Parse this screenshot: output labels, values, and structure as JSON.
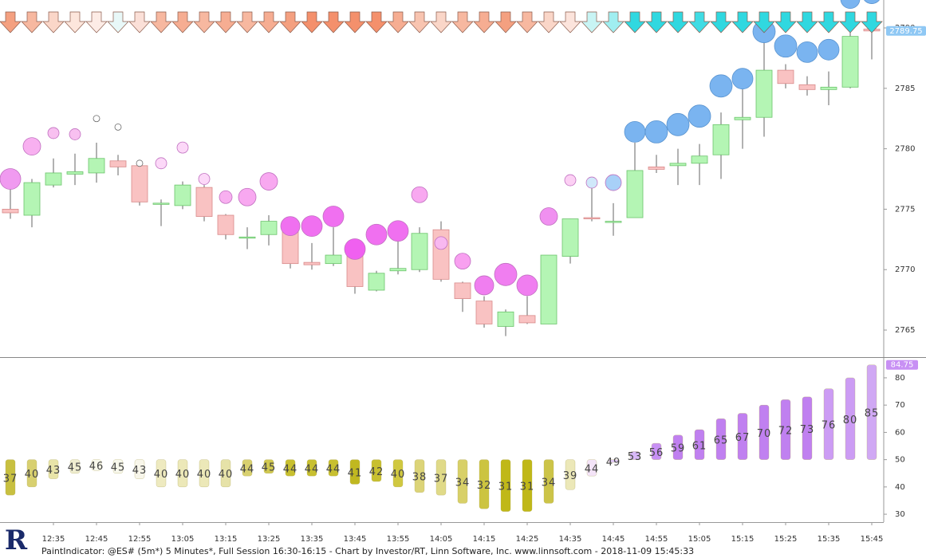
{
  "chart_data": [
    {
      "type": "candlestick",
      "categories": [
        null,
        null,
        "12:35",
        null,
        "12:45",
        null,
        "12:55",
        null,
        "13:05",
        null,
        "13:15",
        null,
        "13:25",
        null,
        "13:35",
        null,
        "13:45",
        null,
        "13:55",
        null,
        "14:05",
        null,
        "14:15",
        null,
        "14:25",
        null,
        "14:35",
        null,
        "14:45",
        null,
        "14:55",
        null,
        "15:05",
        null,
        "15:15",
        null,
        "15:25",
        null,
        "15:35",
        null,
        "15:45"
      ],
      "open": [
        2775,
        2774.5,
        2777,
        2777.9,
        2778,
        2779,
        2778.6,
        2775.5,
        2775.3,
        2776.8,
        2774.5,
        2772.7,
        2772.9,
        2773.3,
        2770.6,
        2770.5,
        2771.4,
        2768.3,
        2769.9,
        2770,
        2773.3,
        2768.9,
        2767.4,
        2765.3,
        2766.2,
        2765.5,
        2771.1,
        2774.3,
        2774,
        2774.3,
        2778.5,
        2778.6,
        2778.8,
        2779.5,
        2782.4,
        2782.6,
        2786.5,
        2785.3,
        2784.9,
        2785.1,
        2789.9
      ],
      "high": [
        2777,
        2777.5,
        2779.2,
        2779.6,
        2780.5,
        2779.5,
        2778.6,
        2775.8,
        2777.3,
        2777,
        2774.6,
        2773.5,
        2774.5,
        2773.5,
        2772.2,
        2773.5,
        2772.5,
        2769.9,
        2773,
        2773.5,
        2774,
        2769,
        2767.8,
        2766.7,
        2767.8,
        2771.2,
        2774.2,
        2777,
        2775.5,
        2780.5,
        2779.5,
        2780,
        2780.4,
        2783,
        2786,
        2788.8,
        2787,
        2786,
        2786.4,
        2790,
        2790.3
      ],
      "low": [
        2774.2,
        2773.5,
        2776.8,
        2777,
        2777.2,
        2777.8,
        2775.3,
        2773.6,
        2775,
        2774,
        2772.5,
        2771.7,
        2772,
        2770.1,
        2770,
        2770.3,
        2768,
        2768.2,
        2769.6,
        2769.8,
        2769,
        2766.5,
        2765.2,
        2764.5,
        2765.5,
        2765.5,
        2770.5,
        2774,
        2772.8,
        2774.3,
        2778,
        2777,
        2777,
        2777.5,
        2780,
        2781,
        2785,
        2784.4,
        2783.6,
        2785,
        2787.4
      ],
      "close": [
        2774.7,
        2777.2,
        2778,
        2778.1,
        2779.2,
        2778.5,
        2775.6,
        2775.5,
        2777,
        2774.4,
        2772.9,
        2772.7,
        2774,
        2770.5,
        2770.4,
        2771.2,
        2768.6,
        2769.7,
        2770.1,
        2773,
        2769.2,
        2767.6,
        2765.5,
        2766.5,
        2765.6,
        2771.2,
        2774.2,
        2774.2,
        2774,
        2778.2,
        2778.3,
        2778.8,
        2779.4,
        2782,
        2782.6,
        2786.5,
        2785.4,
        2784.9,
        2785.1,
        2789.3,
        2789.75
      ],
      "up_color": "#b4f5b4",
      "down_color": "#f9c2c2",
      "circles": {
        "values": [
          2777.5,
          2780.2,
          2781.3,
          2781.2,
          2782.5,
          2781.8,
          2778.8,
          2778.8,
          2780.1,
          2777.5,
          2776,
          2776,
          2777.3,
          2773.6,
          2773.6,
          2774.4,
          2771.7,
          2772.9,
          2773.2,
          2776.2,
          2772.2,
          2770.7,
          2768.7,
          2769.6,
          2768.7,
          2774.4,
          2777.4,
          2777.2,
          2777.2,
          2781.4,
          2781.4,
          2782,
          2782.7,
          2785.2,
          2785.8,
          2789.7,
          2788.5,
          2788,
          2788.2,
          2792.4,
          2792.8
        ],
        "sizes": [
          13,
          11,
          7,
          7,
          4,
          4,
          4,
          7,
          7,
          7,
          8,
          11,
          11,
          12,
          13,
          13,
          13,
          13,
          13,
          10,
          8,
          10,
          12,
          14,
          13,
          11,
          7,
          7,
          10,
          13,
          14,
          14,
          14,
          14,
          13,
          14,
          14,
          13,
          13,
          12,
          12
        ],
        "colors": [
          "#f09af0",
          "#f8b0f0",
          "#f8c0f0",
          "#f8c0f0",
          "#ffffff",
          "#ffffff",
          "#ffffff",
          "#fcd8f8",
          "#fcd8f8",
          "#fcd8f8",
          "#f8b0f0",
          "#f8a8f0",
          "#f8a8f0",
          "#f070f0",
          "#f070f0",
          "#f070f0",
          "#f060f0",
          "#f070f0",
          "#f070f0",
          "#f8a8f0",
          "#f8b8f0",
          "#f8a0f0",
          "#f07ef0",
          "#f07ef0",
          "#f07ef0",
          "#f090f0",
          "#fcd0f4",
          "#d0e8fa",
          "#a8d0f8",
          "#7ab4f0",
          "#7ab4f0",
          "#7ab4f0",
          "#7ab4f0",
          "#7ab4f0",
          "#7ab4f0",
          "#7ab4f0",
          "#7ab4f0",
          "#7ab4f0",
          "#7ab4f0",
          "#7ab4f0",
          "#7ab4f0"
        ]
      },
      "arrow_colors": [
        "#f4a080",
        "#f7b8a0",
        "#fad6c8",
        "#fde6dc",
        "#fdece6",
        "#e8f8f8",
        "#fbe0d8",
        "#f7b8a0",
        "#f6ad92",
        "#f7b8a0",
        "#f6ad92",
        "#f7b8a0",
        "#f6ad92",
        "#f4a080",
        "#f4906c",
        "#f4906c",
        "#f4906c",
        "#f4906c",
        "#f6ad92",
        "#f8c4b0",
        "#fad6c8",
        "#f7b8a0",
        "#f6ad92",
        "#f4a080",
        "#f7b8a0",
        "#fad6c8",
        "#fce4dc",
        "#c8f4f4",
        "#a0eef0",
        "#30d8e0",
        "#30d8e0",
        "#30d8e0",
        "#40dce4",
        "#30d8e0",
        "#30d8e0",
        "#30d8e0",
        "#30d8e0",
        "#30d8e0",
        "#30d8e0",
        "#30d8e0",
        "#30d8e0"
      ],
      "ylim": [
        2762.76,
        2792.31
      ],
      "yticks": [
        2765,
        2770,
        2775,
        2780,
        2785,
        2790
      ]
    },
    {
      "type": "bar",
      "values": [
        37,
        40,
        43,
        45,
        46,
        45,
        43,
        40,
        40,
        40,
        40,
        44,
        45,
        44,
        44,
        44,
        41,
        42,
        40,
        38,
        37,
        34,
        32,
        31,
        31,
        34,
        39,
        44,
        49,
        53,
        56,
        59,
        61,
        65,
        67,
        70,
        72,
        73,
        76,
        80,
        84.75
      ],
      "value_labels": [
        "37",
        "40",
        "43",
        "45",
        "46",
        "45",
        "43",
        "40",
        "40",
        "40",
        "40",
        "44",
        "45",
        "44",
        "44",
        "44",
        "41",
        "42",
        "40",
        "38",
        "37",
        "34",
        "32",
        "31",
        "31",
        "34",
        "39",
        "44",
        "49",
        "53",
        "56",
        "59",
        "61",
        "65",
        "67",
        "70",
        "72",
        "73",
        "76",
        "80",
        "85"
      ],
      "colors": [
        "#c8c040",
        "#d8d070",
        "#e8e4a8",
        "#f0eed0",
        "#f8f8ec",
        "#f8f8ec",
        "#f8f6ea",
        "#eeeac0",
        "#ece8b8",
        "#ece8b8",
        "#e6e2a8",
        "#d8d070",
        "#d0c850",
        "#c8c030",
        "#c8c030",
        "#c8c030",
        "#c0b820",
        "#c8c030",
        "#d0c840",
        "#dcd478",
        "#e0da88",
        "#d8d068",
        "#ccc440",
        "#c0b818",
        "#c0b818",
        "#ccc448",
        "#ece8b8",
        "#f4e4f8",
        "#e0c8f8",
        "#d8b8f8",
        "#c890f4",
        "#c080f0",
        "#c080f0",
        "#c080f0",
        "#c080f0",
        "#c080f0",
        "#c080f0",
        "#c080f0",
        "#cc9cf4",
        "#cc9cf4",
        "#d0a8f4"
      ],
      "baseline": 50,
      "ylim": [
        27.1,
        87.0
      ],
      "yticks": [
        30,
        40,
        50,
        60,
        70,
        80
      ]
    }
  ],
  "logo": "R",
  "footer": "PaintIndicator: @ES# (5m*) 5 Minutes*, Full Session 16:30-16:15 - Chart by Investor/RT, Linn Software, Inc. www.linnsoft.com - 2018-11-09 15:45:33"
}
